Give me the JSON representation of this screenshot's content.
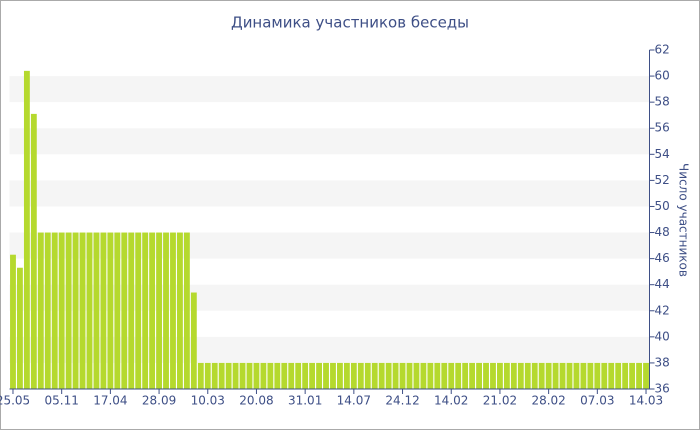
{
  "chart_data": {
    "type": "bar",
    "title": "Динамика участников беседы",
    "y_label": "Число участников",
    "categories": [
      "25.05",
      null,
      null,
      null,
      null,
      null,
      null,
      "05.11",
      null,
      null,
      null,
      null,
      null,
      null,
      "17.04",
      null,
      null,
      null,
      null,
      null,
      null,
      "28.09",
      null,
      null,
      null,
      null,
      null,
      null,
      "10.03",
      null,
      null,
      null,
      null,
      null,
      null,
      "20.08",
      null,
      null,
      null,
      null,
      null,
      null,
      "31.01",
      null,
      null,
      null,
      null,
      null,
      null,
      "14.07",
      null,
      null,
      null,
      null,
      null,
      null,
      "24.12",
      null,
      null,
      null,
      null,
      null,
      null,
      "14.02",
      null,
      null,
      null,
      null,
      null,
      null,
      "21.02",
      null,
      null,
      null,
      null,
      null,
      null,
      "28.02",
      null,
      null,
      null,
      null,
      null,
      null,
      "07.03",
      null,
      null,
      null,
      null,
      null,
      null,
      "14.03"
    ],
    "values": [
      46.3,
      45.3,
      60.4,
      57.1,
      48,
      48,
      48,
      48,
      48,
      48,
      48,
      48,
      48,
      48,
      48,
      48,
      48,
      48,
      48,
      48,
      48,
      48,
      48,
      48,
      48,
      48,
      43.4,
      38,
      38,
      38,
      38,
      38,
      38,
      38,
      38,
      38,
      38,
      38,
      38,
      38,
      38,
      38,
      38,
      38,
      38,
      38,
      38,
      38,
      38,
      38,
      38,
      38,
      38,
      38,
      38,
      38,
      38,
      38,
      38,
      38,
      38,
      38,
      38,
      38,
      38,
      38,
      38,
      38,
      38,
      38,
      38,
      38,
      38,
      38,
      38,
      38,
      38,
      38,
      38,
      38,
      38,
      38,
      38,
      38,
      38,
      38,
      38,
      38,
      38,
      38,
      38,
      38
    ],
    "color": "#b5d92e",
    "ylim": [
      36,
      62
    ],
    "yticks": [
      36,
      38,
      40,
      42,
      44,
      46,
      48,
      50,
      52,
      54,
      56,
      58,
      60,
      62
    ],
    "grid": true
  }
}
